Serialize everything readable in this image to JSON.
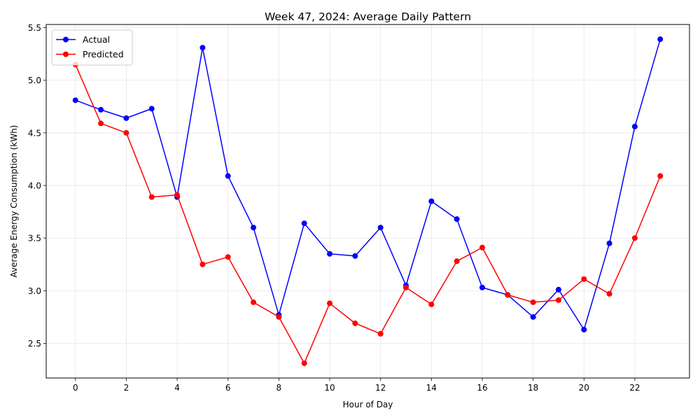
{
  "chart_data": {
    "type": "line",
    "title": "Week 47, 2024: Average Daily Pattern",
    "xlabel": "Hour of Day",
    "ylabel": "Average Energy Consumption (kWh)",
    "xlim": [
      -1.15,
      24.15
    ],
    "ylim": [
      2.17,
      5.53
    ],
    "xticks": [
      0,
      2,
      4,
      6,
      8,
      10,
      12,
      14,
      16,
      18,
      20,
      22
    ],
    "xtick_labels": [
      "0",
      "2",
      "4",
      "6",
      "8",
      "10",
      "12",
      "14",
      "16",
      "18",
      "20",
      "22"
    ],
    "yticks": [
      2.5,
      3.0,
      3.5,
      4.0,
      4.5,
      5.0,
      5.5
    ],
    "ytick_labels": [
      "2.5",
      "3.0",
      "3.5",
      "4.0",
      "4.5",
      "5.0",
      "5.5"
    ],
    "grid": true,
    "legend_position": "top-left",
    "x": [
      0,
      1,
      2,
      3,
      4,
      5,
      6,
      7,
      8,
      9,
      10,
      11,
      12,
      13,
      14,
      15,
      16,
      17,
      18,
      19,
      20,
      21,
      22,
      23
    ],
    "series": [
      {
        "name": "Actual",
        "color": "#0000ff",
        "values": [
          4.81,
          4.72,
          4.64,
          4.73,
          3.89,
          5.31,
          4.09,
          3.6,
          2.77,
          3.64,
          3.35,
          3.33,
          3.6,
          3.05,
          3.85,
          3.68,
          3.03,
          2.96,
          2.75,
          3.01,
          2.63,
          3.45,
          4.56,
          5.39
        ]
      },
      {
        "name": "Predicted",
        "color": "#ff0000",
        "values": [
          5.15,
          4.59,
          4.5,
          3.89,
          3.91,
          3.25,
          3.32,
          2.89,
          2.75,
          2.31,
          2.88,
          2.69,
          2.59,
          3.03,
          2.87,
          3.28,
          3.41,
          2.96,
          2.89,
          2.91,
          3.11,
          2.97,
          3.5,
          4.09
        ]
      }
    ]
  }
}
